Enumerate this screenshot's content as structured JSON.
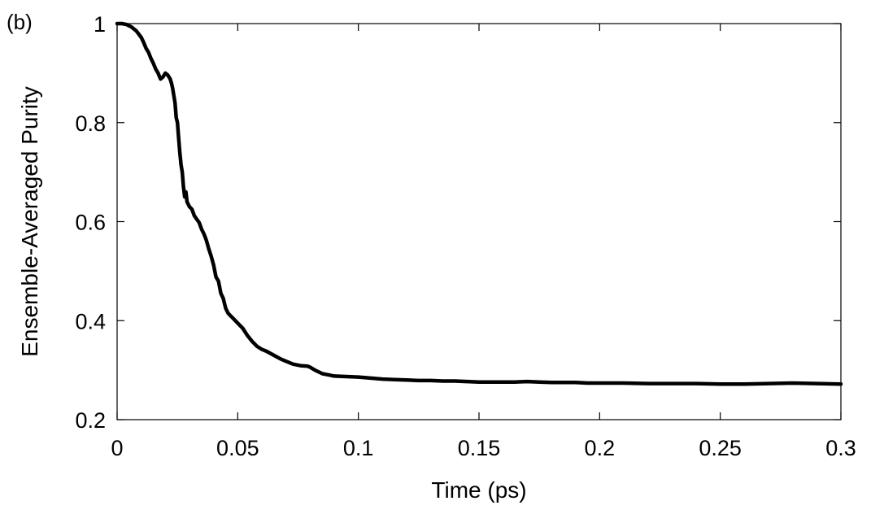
{
  "panel_label": "(b)",
  "chart_data": {
    "type": "line",
    "title": "",
    "xlabel": "Time (ps)",
    "ylabel": "Ensemble-Averaged Purity",
    "xlim": [
      0,
      0.3
    ],
    "ylim": [
      0.2,
      1.0
    ],
    "grid": false,
    "legend": "none",
    "line_color": "#000000",
    "xticks": [
      {
        "value": 0,
        "label": "0"
      },
      {
        "value": 0.05,
        "label": "0.05"
      },
      {
        "value": 0.1,
        "label": "0.1"
      },
      {
        "value": 0.15,
        "label": "0.15"
      },
      {
        "value": 0.2,
        "label": "0.2"
      },
      {
        "value": 0.25,
        "label": "0.25"
      },
      {
        "value": 0.3,
        "label": "0.3"
      }
    ],
    "yticks": [
      {
        "value": 0.2,
        "label": "0.2"
      },
      {
        "value": 0.4,
        "label": "0.4"
      },
      {
        "value": 0.6,
        "label": "0.6"
      },
      {
        "value": 0.8,
        "label": "0.8"
      },
      {
        "value": 1.0,
        "label": "1"
      }
    ],
    "series": [
      {
        "x": [
          0,
          0.002,
          0.004,
          0.006,
          0.008,
          0.01,
          0.011,
          0.012,
          0.013,
          0.014,
          0.015,
          0.016,
          0.017,
          0.018,
          0.019,
          0.02,
          0.021,
          0.022,
          0.0225,
          0.023,
          0.0235,
          0.024,
          0.0245,
          0.025,
          0.0255,
          0.026,
          0.0265,
          0.027,
          0.0275,
          0.028,
          0.0285,
          0.029,
          0.03,
          0.031,
          0.032,
          0.033,
          0.034,
          0.035,
          0.036,
          0.037,
          0.038,
          0.039,
          0.04,
          0.041,
          0.042,
          0.043,
          0.044,
          0.045,
          0.046,
          0.047,
          0.048,
          0.05,
          0.052,
          0.054,
          0.056,
          0.058,
          0.06,
          0.062,
          0.065,
          0.068,
          0.07,
          0.073,
          0.076,
          0.079,
          0.08,
          0.082,
          0.085,
          0.088,
          0.09,
          0.095,
          0.1,
          0.105,
          0.11,
          0.115,
          0.12,
          0.125,
          0.13,
          0.135,
          0.14,
          0.145,
          0.15,
          0.155,
          0.16,
          0.165,
          0.17,
          0.175,
          0.18,
          0.185,
          0.19,
          0.195,
          0.2,
          0.21,
          0.22,
          0.23,
          0.24,
          0.25,
          0.26,
          0.27,
          0.28,
          0.29,
          0.3
        ],
        "y": [
          1.0,
          1.0,
          0.998,
          0.993,
          0.985,
          0.972,
          0.962,
          0.95,
          0.942,
          0.93,
          0.92,
          0.908,
          0.9,
          0.888,
          0.892,
          0.9,
          0.896,
          0.888,
          0.88,
          0.87,
          0.855,
          0.84,
          0.81,
          0.8,
          0.77,
          0.74,
          0.715,
          0.7,
          0.67,
          0.65,
          0.66,
          0.64,
          0.63,
          0.625,
          0.612,
          0.605,
          0.598,
          0.585,
          0.575,
          0.562,
          0.545,
          0.53,
          0.512,
          0.488,
          0.48,
          0.455,
          0.445,
          0.425,
          0.415,
          0.41,
          0.405,
          0.395,
          0.385,
          0.37,
          0.358,
          0.348,
          0.342,
          0.338,
          0.33,
          0.322,
          0.318,
          0.312,
          0.309,
          0.308,
          0.306,
          0.3,
          0.293,
          0.29,
          0.288,
          0.287,
          0.286,
          0.284,
          0.282,
          0.281,
          0.28,
          0.279,
          0.279,
          0.278,
          0.278,
          0.277,
          0.276,
          0.276,
          0.276,
          0.276,
          0.277,
          0.276,
          0.275,
          0.275,
          0.275,
          0.274,
          0.274,
          0.274,
          0.273,
          0.273,
          0.273,
          0.272,
          0.272,
          0.273,
          0.274,
          0.273,
          0.272
        ]
      }
    ]
  }
}
